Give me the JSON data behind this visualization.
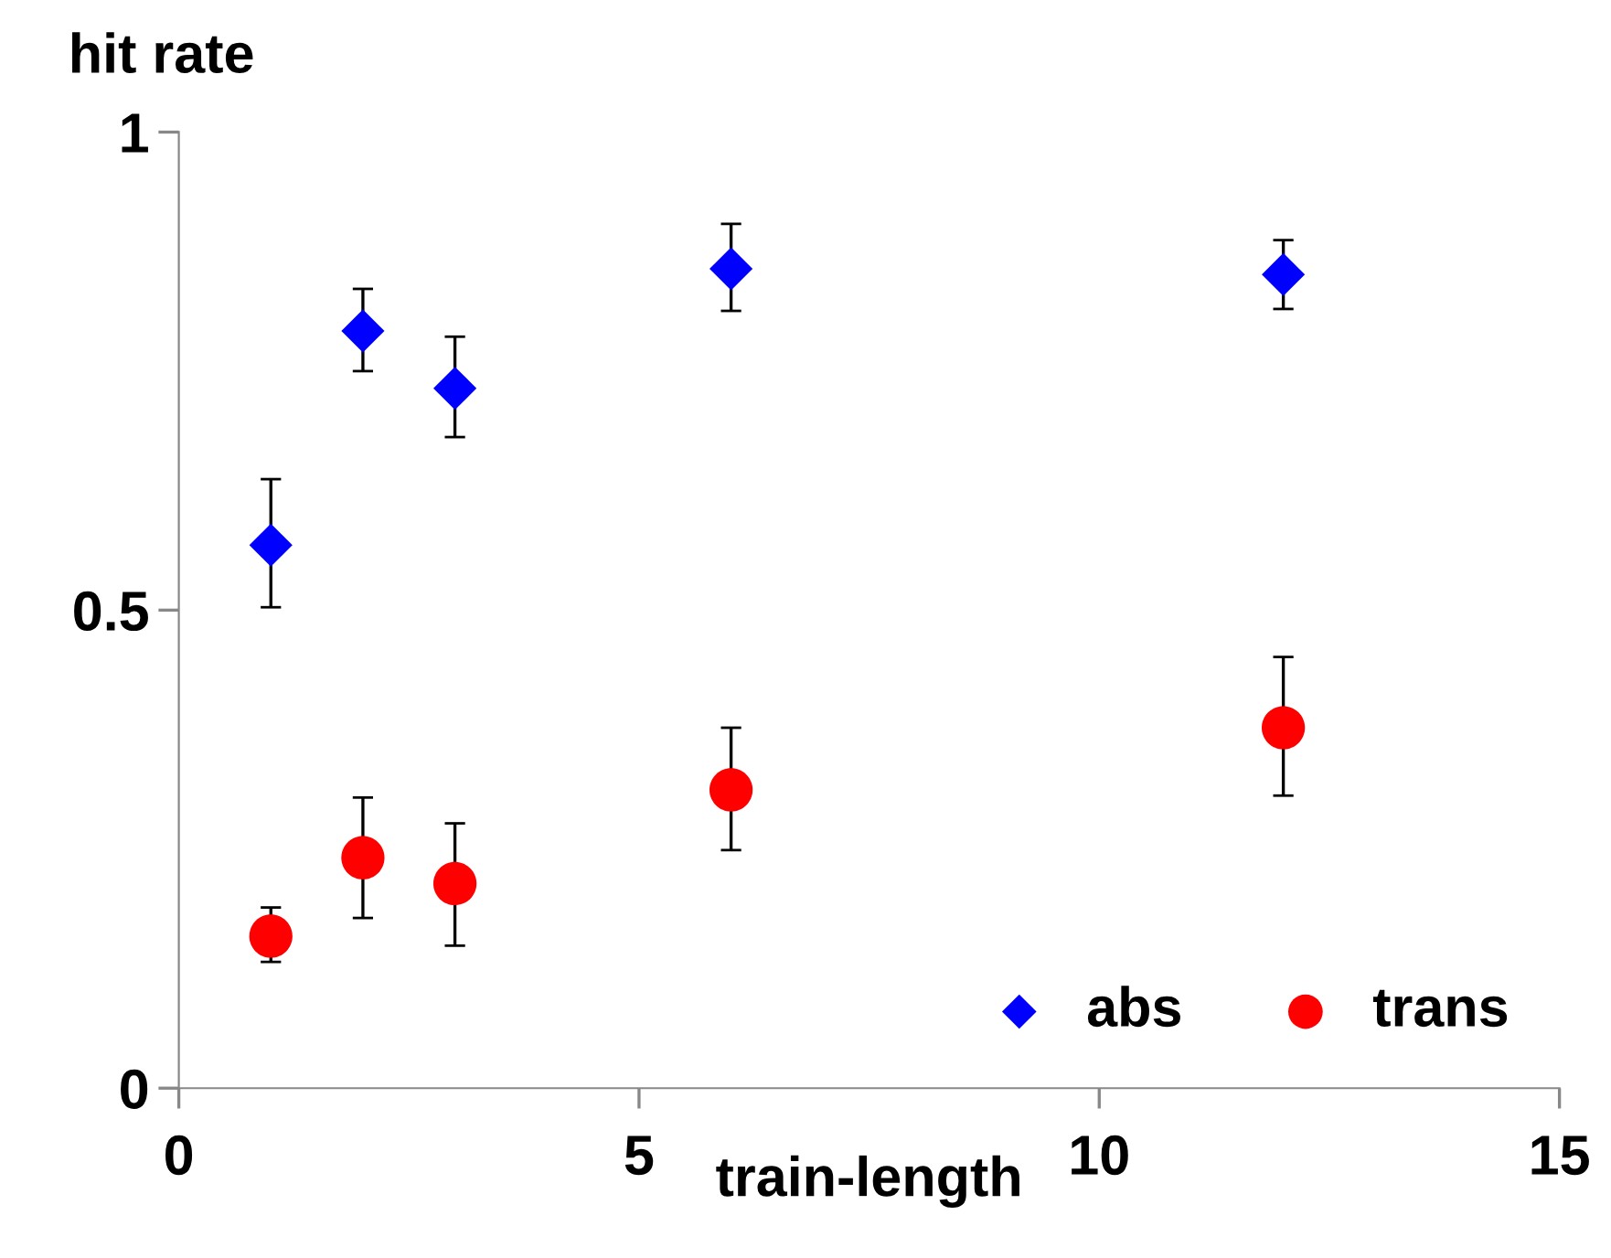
{
  "chart_data": {
    "type": "scatter",
    "xlabel": "train-length",
    "ylabel": "hit rate",
    "x": [
      1,
      2,
      3,
      6,
      12
    ],
    "series": [
      {
        "name": "abs",
        "color": "#0000ff",
        "marker": "diamond",
        "values": [
          0.568,
          0.792,
          0.732,
          0.857,
          0.851
        ],
        "errors": [
          [
            0.503,
            0.637
          ],
          [
            0.75,
            0.836
          ],
          [
            0.681,
            0.786
          ],
          [
            0.813,
            0.904
          ],
          [
            0.815,
            0.887
          ]
        ]
      },
      {
        "name": "trans",
        "color": "#ff0000",
        "marker": "circle",
        "values": [
          0.159,
          0.241,
          0.214,
          0.312,
          0.377
        ],
        "errors": [
          [
            0.132,
            0.189
          ],
          [
            0.178,
            0.304
          ],
          [
            0.149,
            0.277
          ],
          [
            0.249,
            0.377
          ],
          [
            0.306,
            0.451
          ]
        ]
      }
    ],
    "xlim": [
      0,
      15
    ],
    "xticks": [
      0,
      5,
      10,
      15
    ],
    "ylim": [
      0,
      1
    ],
    "yticks": [
      0,
      0.5,
      1
    ],
    "grid": false,
    "legend": "bottom right"
  }
}
